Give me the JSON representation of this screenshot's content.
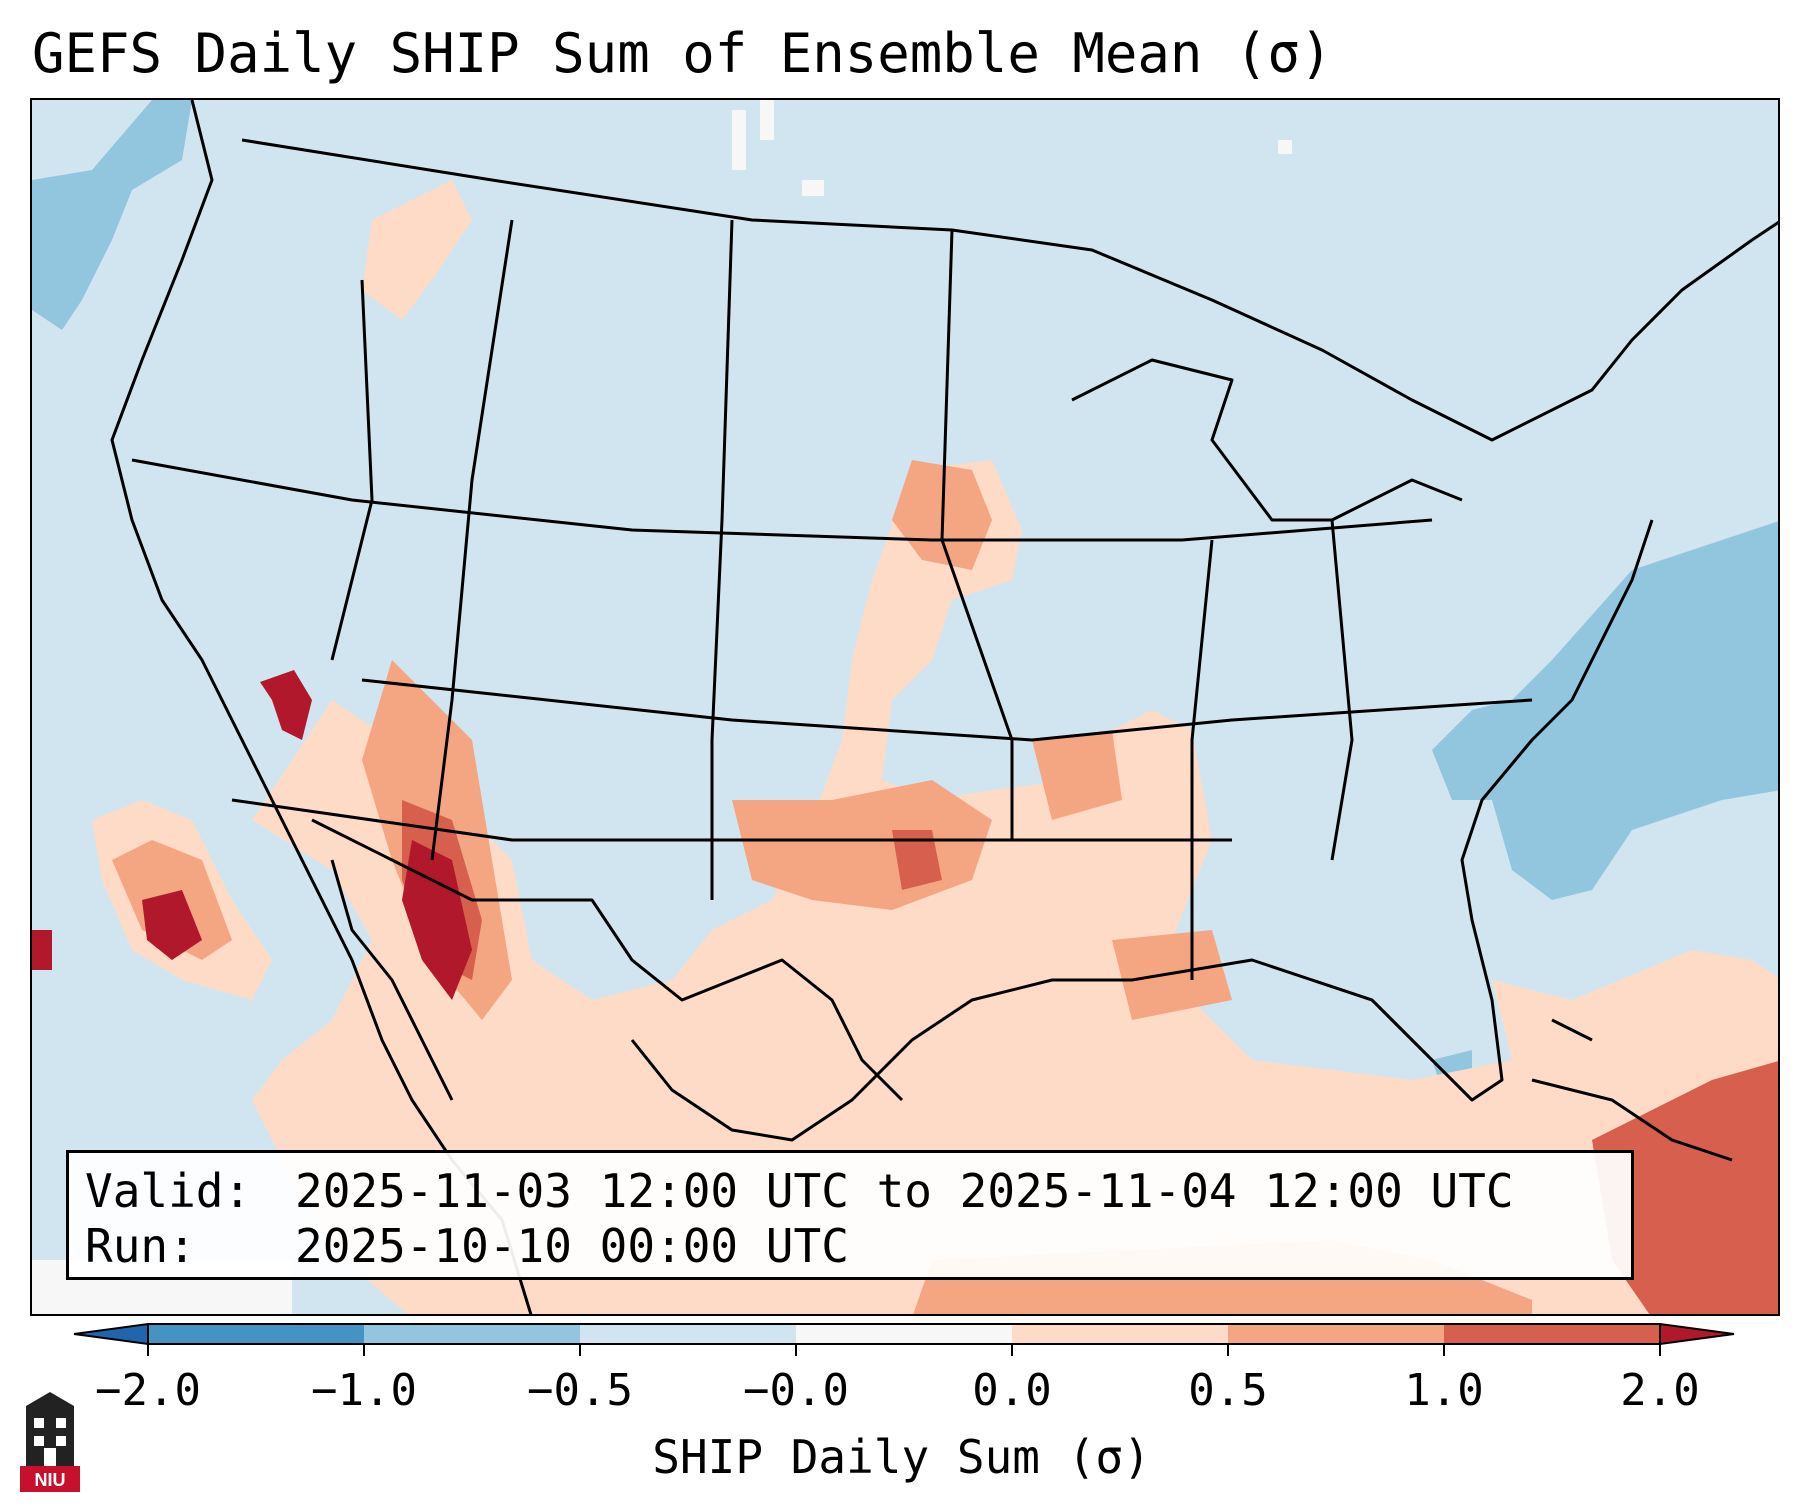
{
  "title": "GEFS Daily SHIP Sum of Ensemble Mean (σ)",
  "info": {
    "valid_label": "Valid:",
    "valid_value": "2025-11-03 12:00 UTC to 2025-11-04 12:00 UTC",
    "run_label": "Run:",
    "run_value": "2025-10-10 00:00 UTC"
  },
  "colorbar": {
    "label": "SHIP Daily Sum (σ)",
    "ticks": [
      "−2.0",
      "−1.0",
      "−0.5",
      "−0.0",
      "0.0",
      "0.5",
      "1.0",
      "2.0"
    ],
    "bins": [
      {
        "range": "-2.0 to -1.0",
        "color": "#4393c3"
      },
      {
        "range": "-1.0 to -0.5",
        "color": "#92c5de"
      },
      {
        "range": "-0.5 to -0.0",
        "color": "#d1e5f0"
      },
      {
        "range": "-0.0 to 0.0",
        "color": "#f7f7f7"
      },
      {
        "range": "0.0 to 0.5",
        "color": "#fddbc7"
      },
      {
        "range": "0.5 to 1.0",
        "color": "#f4a582"
      },
      {
        "range": "1.0 to 2.0",
        "color": "#d6604d"
      }
    ],
    "extend_low_color": "#2166ac",
    "extend_high_color": "#b2182b"
  },
  "colors": {
    "background_field": "#d1e5f0",
    "outline": "#000000"
  },
  "logo": {
    "text": "NIU",
    "color": "#c8102e"
  }
}
